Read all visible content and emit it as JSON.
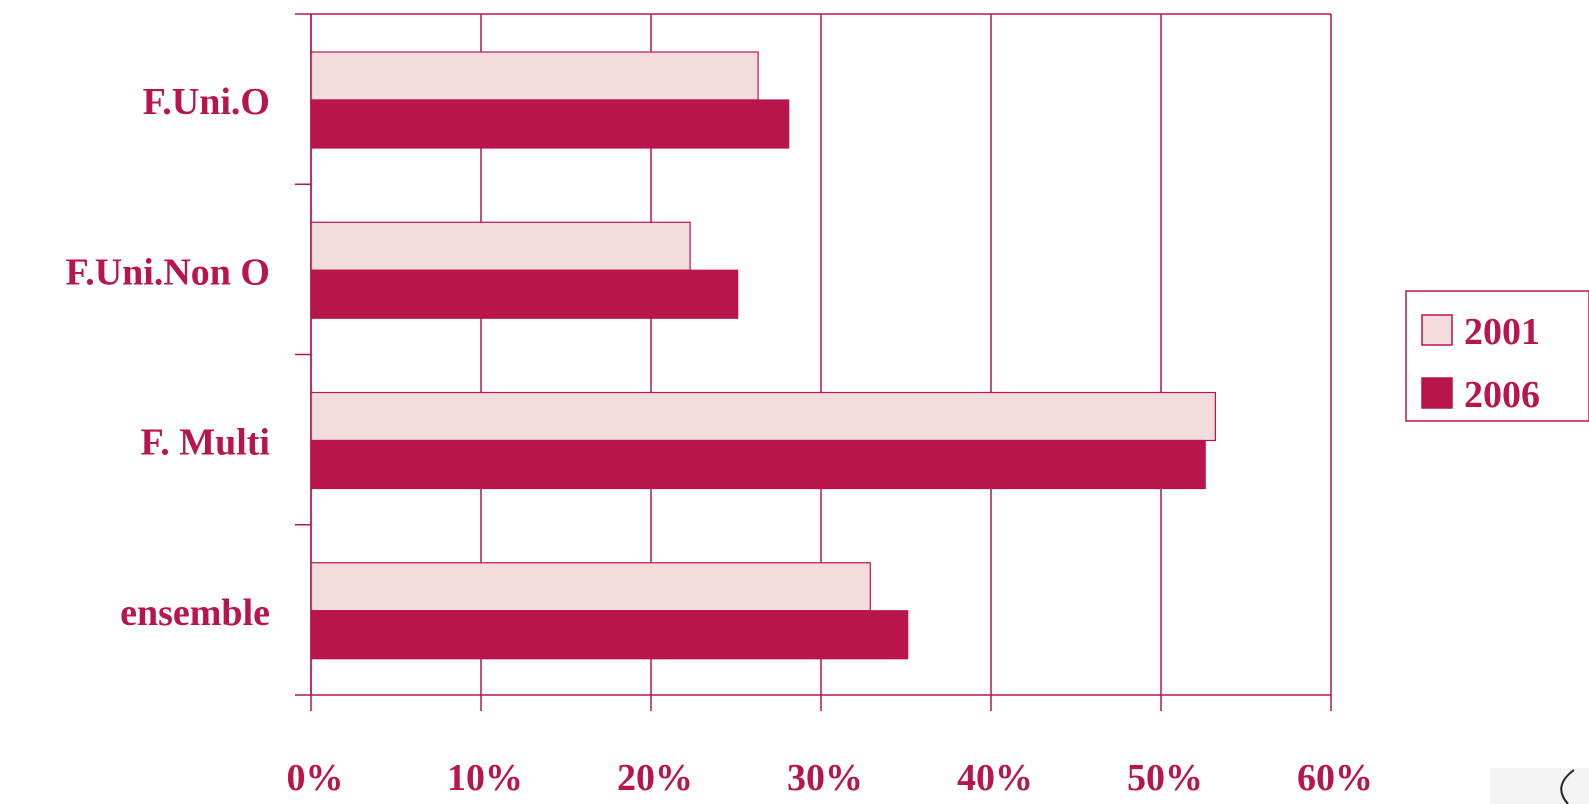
{
  "colors": {
    "accent": "#b8154b",
    "series_2001_fill": "#f3dcdc",
    "series_2006_fill": "#b8154b",
    "grid": "#b8154b",
    "background": "#ffffff"
  },
  "legend": {
    "position": "right",
    "items": [
      {
        "label": "2001",
        "icon": "light-square-icon"
      },
      {
        "label": "2006",
        "icon": "dark-square-icon"
      }
    ]
  },
  "chart_data": {
    "type": "bar",
    "orientation": "horizontal",
    "categories": [
      "F.Uni.O",
      "F.Uni.Non O",
      "F. Multi",
      "ensemble"
    ],
    "series": [
      {
        "name": "2001",
        "values": [
          26.3,
          22.3,
          53.2,
          32.9
        ]
      },
      {
        "name": "2006",
        "values": [
          28.1,
          25.1,
          52.6,
          35.1
        ]
      }
    ],
    "xlim": [
      0,
      60
    ],
    "xticks": [
      "0%",
      "10%",
      "20%",
      "30%",
      "40%",
      "50%",
      "60%"
    ],
    "grid": true,
    "title": "",
    "xlabel": "",
    "ylabel": ""
  }
}
